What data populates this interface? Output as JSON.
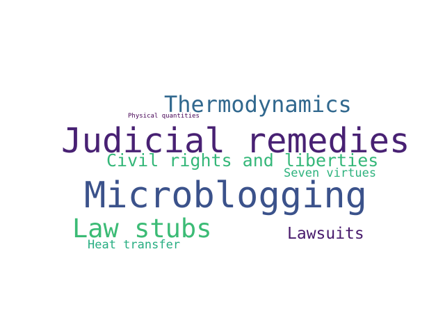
{
  "word_cloud": {
    "background": "#ffffff",
    "words": [
      {
        "text": "Microblogging",
        "color": "#3b528b"
      },
      {
        "text": "Judicial remedies",
        "color": "#482173"
      },
      {
        "text": "Law stubs",
        "color": "#3bbb75"
      },
      {
        "text": "Thermodynamics",
        "color": "#31688e"
      },
      {
        "text": "Civil rights and liberties",
        "color": "#35b779"
      },
      {
        "text": "Lawsuits",
        "color": "#481a6c"
      },
      {
        "text": "Seven virtues",
        "color": "#2db27d"
      },
      {
        "text": "Heat transfer",
        "color": "#26ad81"
      },
      {
        "text": "Physical quantities",
        "color": "#440154"
      }
    ]
  }
}
